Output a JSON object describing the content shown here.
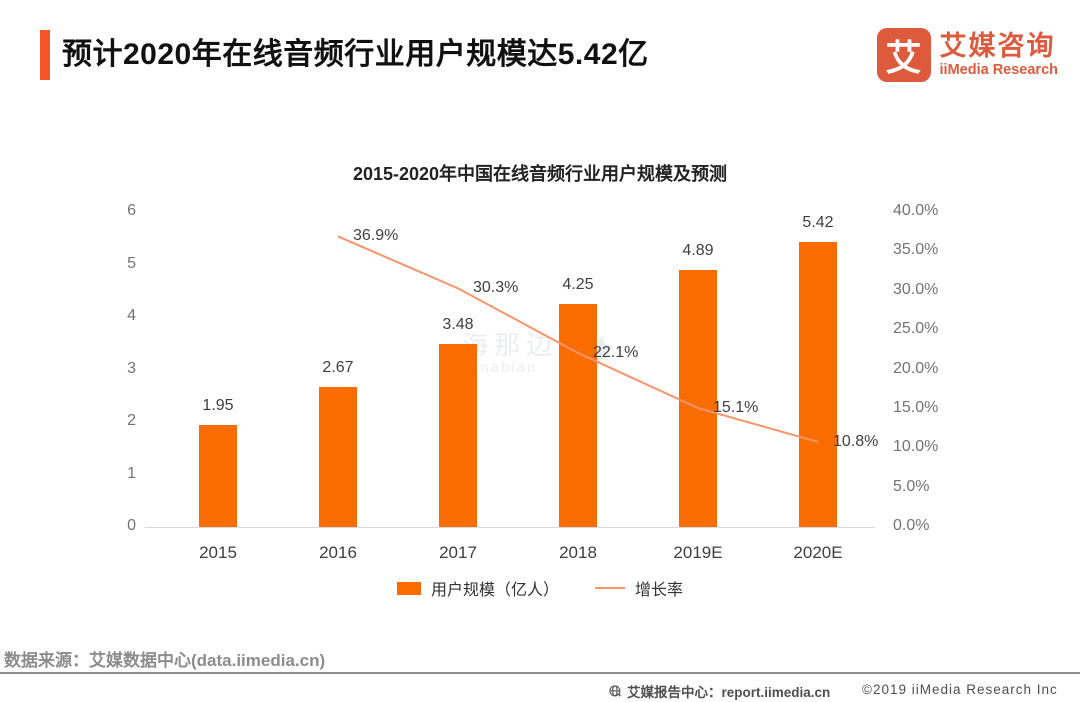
{
  "page": {
    "title": "预计2020年在线音频行业用户规模达5.42亿",
    "logo": {
      "glyph": "艾",
      "name_cn": "艾媒咨询",
      "name_en": "iiMedia Research"
    },
    "watermark": {
      "cn": "海那边",
      "en": "Hinabian"
    },
    "source_note": "数据来源：艾媒数据中心(data.iimedia.cn)",
    "footer": {
      "report_center": "艾媒报告中心：report.iimedia.cn",
      "copyright": "©2019  iiMedia Research  Inc"
    }
  },
  "colors": {
    "bar": "#F96D00",
    "line": "#F9936B",
    "accent": "#F4552B",
    "logo": "#DE5A3C"
  },
  "chart_data": {
    "type": "bar",
    "title": "2015-2020年中国在线音频行业用户规模及预测",
    "categories": [
      "2015",
      "2016",
      "2017",
      "2018",
      "2019E",
      "2020E"
    ],
    "series": [
      {
        "name": "用户规模（亿人）",
        "type": "bar",
        "axis": "left",
        "values": [
          1.95,
          2.67,
          3.48,
          4.25,
          4.89,
          5.42
        ]
      },
      {
        "name": "增长率",
        "type": "line",
        "axis": "right",
        "unit": "%",
        "values": [
          null,
          36.9,
          30.3,
          22.1,
          15.1,
          10.8
        ]
      }
    ],
    "left_axis": {
      "label": "",
      "min": 0,
      "max": 6,
      "ticks": [
        0,
        1,
        2,
        3,
        4,
        5,
        6
      ]
    },
    "right_axis": {
      "label": "",
      "min": 0,
      "max": 40,
      "ticks": [
        "0.0%",
        "5.0%",
        "10.0%",
        "15.0%",
        "20.0%",
        "25.0%",
        "30.0%",
        "35.0%",
        "40.0%"
      ]
    },
    "legend_position": "bottom",
    "grid": false
  }
}
